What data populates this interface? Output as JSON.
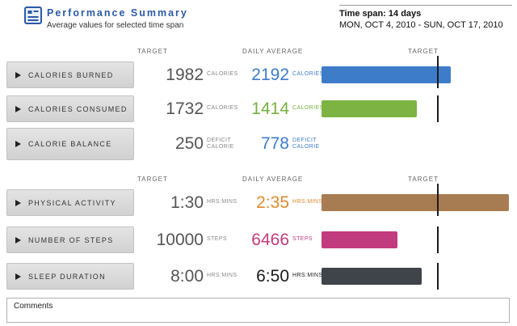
{
  "header": {
    "title": "Performance Summary",
    "subtitle": "Average values for selected time span",
    "timespan": "Time span: 14 days",
    "date_range": "MON, OCT 4, 2010 - SUN, OCT 17, 2010"
  },
  "column_headers": {
    "target": "TARGET",
    "daily_average": "DAILY AVERAGE",
    "target_right": "TARGET"
  },
  "rows": [
    {
      "label": "CALORIES BURNED",
      "target": "1982",
      "target_unit": "CALORIES",
      "target_unit2": "",
      "avg": "2192",
      "avg_unit": "CALORIES",
      "avg_unit2": "",
      "avg_color": "#3d7cc9",
      "bar_color": "#3d7cc9",
      "ratio": 1.106
    },
    {
      "label": "CALORIES CONSUMED",
      "target": "1732",
      "target_unit": "CALORIES",
      "target_unit2": "",
      "avg": "1414",
      "avg_unit": "CALORIES",
      "avg_unit2": "",
      "avg_color": "#76b041",
      "bar_color": "#7cb342",
      "ratio": 0.816
    },
    {
      "label": "CALORIE BALANCE",
      "target": "250",
      "target_unit": "DEFICIT",
      "target_unit2": "CALORIE",
      "avg": "778",
      "avg_unit": "DEFICIT",
      "avg_unit2": "CALORIE",
      "avg_color": "#3d7cc9",
      "bar_color": null,
      "ratio": null
    },
    {
      "label": "PHYSICAL ACTIVITY",
      "target": "1:30",
      "target_unit": "HRS:MINS",
      "target_unit2": "",
      "avg": "2:35",
      "avg_unit": "HRS:MINS",
      "avg_unit2": "",
      "avg_color": "#e08a2e",
      "bar_color": "#a87c52",
      "ratio": 1.722
    },
    {
      "label": "NUMBER OF STEPS",
      "target": "10000",
      "target_unit": "STEPS",
      "target_unit2": "",
      "avg": "6466",
      "avg_unit": "STEPS",
      "avg_unit2": "",
      "avg_color": "#c23b7e",
      "bar_color": "#c23b7e",
      "ratio": 0.647
    },
    {
      "label": "SLEEP DURATION",
      "target": "8:00",
      "target_unit": "HRS:MINS",
      "target_unit2": "",
      "avg": "6:50",
      "avg_unit": "HRS:MINS",
      "avg_unit2": "",
      "avg_color": "#1a1a1a",
      "bar_color": "#3f444b",
      "ratio": 0.854
    }
  ],
  "comments": {
    "label": "Comments"
  }
}
